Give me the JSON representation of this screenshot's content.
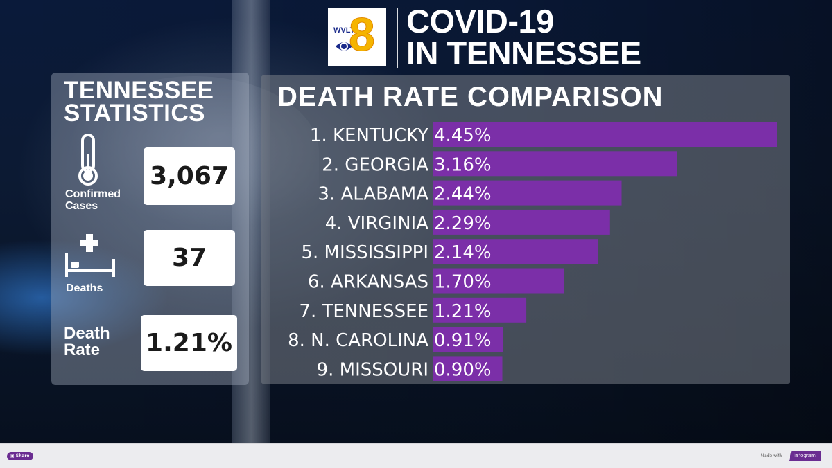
{
  "header": {
    "logo": {
      "call_letters": "WVLT",
      "channel": "8",
      "icon": "cbs-eye-icon"
    },
    "title_lines": [
      "COVID-19",
      "IN TENNESSEE"
    ]
  },
  "stats": {
    "title_lines": [
      "TENNESSEE",
      "STATISTICS"
    ],
    "items": [
      {
        "label": "Confirmed Cases",
        "label_lines": [
          "Confirmed",
          "Cases"
        ],
        "value": "3,067",
        "icon": "thermometer-icon"
      },
      {
        "label": "Deaths",
        "label_lines": [
          "Deaths"
        ],
        "value": "37",
        "icon": "hospital-bed-icon"
      },
      {
        "label": "Death Rate",
        "label_lines": [
          "Death",
          "Rate"
        ],
        "value": "1.21%",
        "icon": ""
      }
    ]
  },
  "chart_data": {
    "type": "bar",
    "orientation": "horizontal",
    "title": "DEATH RATE COMPARISON",
    "categories": [
      "1. KENTUCKY",
      "2. GEORGIA",
      "3. ALABAMA",
      "4. VIRGINIA",
      "5. MISSISSIPPI",
      "6. ARKANSAS",
      "7. TENNESSEE",
      "8. N. CAROLINA",
      "9. MISSOURI"
    ],
    "values": [
      4.45,
      3.16,
      2.44,
      2.29,
      2.14,
      1.7,
      1.21,
      0.91,
      0.9
    ],
    "value_labels": [
      "4.45%",
      "3.16%",
      "2.44%",
      "2.29%",
      "2.14%",
      "1.70%",
      "1.21%",
      "0.91%",
      "0.90%"
    ],
    "unit": "%",
    "bar_color": "#7b2fa8",
    "grid": false,
    "legend": "none"
  },
  "footer": {
    "share_label": "Share",
    "made_with_label": "Made with",
    "brand_label": "infogram",
    "brand_color": "#6a2c91"
  }
}
